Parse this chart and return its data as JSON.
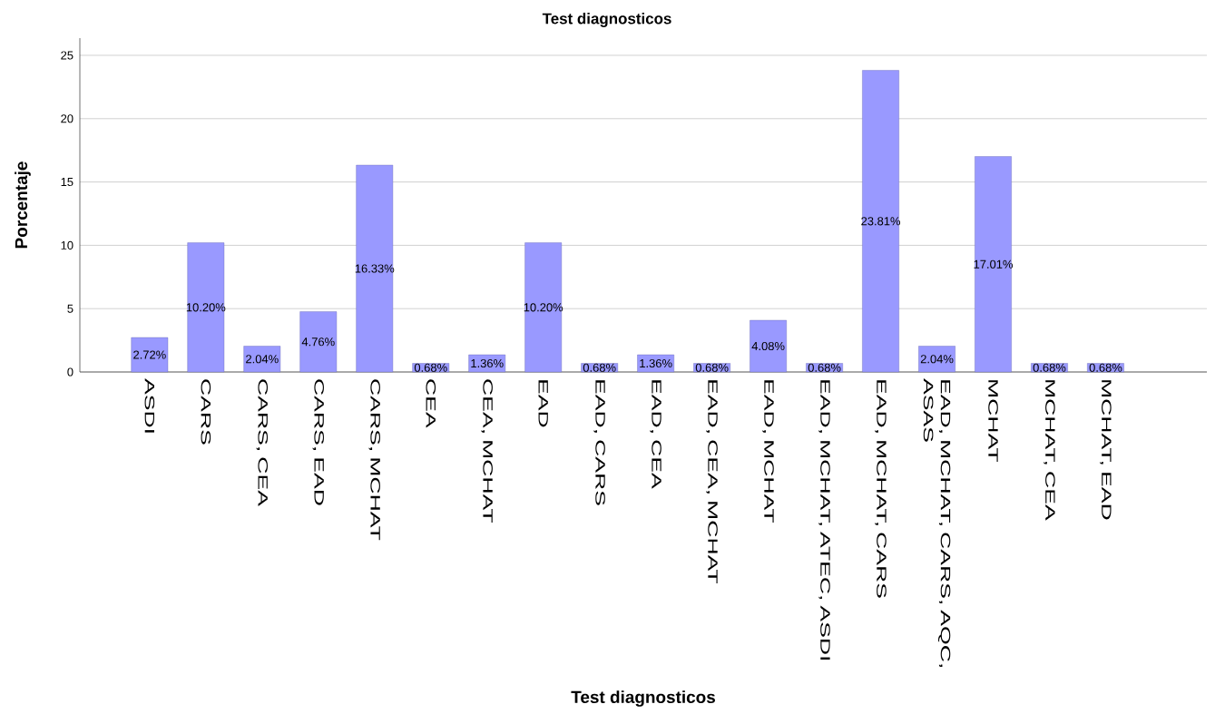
{
  "chart_data": {
    "type": "bar",
    "title": "Test diagnosticos",
    "xlabel": "Test diagnosticos",
    "ylabel": "Porcentaje",
    "categories": [
      "ASDI",
      "CARS",
      "CARS, CEA",
      "CARS, EAD",
      "CARS, MCHAT",
      "CEA",
      "CEA, MCHAT",
      "EAD",
      "EAD, CARS",
      "EAD, CEA",
      "EAD, CEA, MCHAT",
      "EAD, MCHAT",
      "EAD, MCHAT, ATEC, ASDI",
      "EAD, MCHAT, CARS",
      "EAD, MCHAT, CARS, AQC, ASAS",
      "MCHAT",
      "MCHAT, CEA",
      "MCHAT, EAD"
    ],
    "values": [
      2.72,
      10.2,
      2.04,
      4.76,
      16.33,
      0.68,
      1.36,
      10.2,
      0.68,
      1.36,
      0.68,
      4.08,
      0.68,
      23.81,
      2.04,
      17.01,
      0.68,
      0.68
    ],
    "value_labels": [
      "2.72%",
      "10.20%",
      "2.04%",
      "4.76%",
      "16.33%",
      "0.68%",
      "1.36%",
      "10.20%",
      "0.68%",
      "1.36%",
      "0.68%",
      "4.08%",
      "0.68%",
      "23.81%",
      "2.04%",
      "17.01%",
      "0.68%",
      "0.68%"
    ],
    "color": "#9999ff",
    "ylim": [
      0,
      26.36
    ],
    "yticks": [
      0,
      5,
      10,
      15,
      20,
      25
    ],
    "grid": "y"
  }
}
